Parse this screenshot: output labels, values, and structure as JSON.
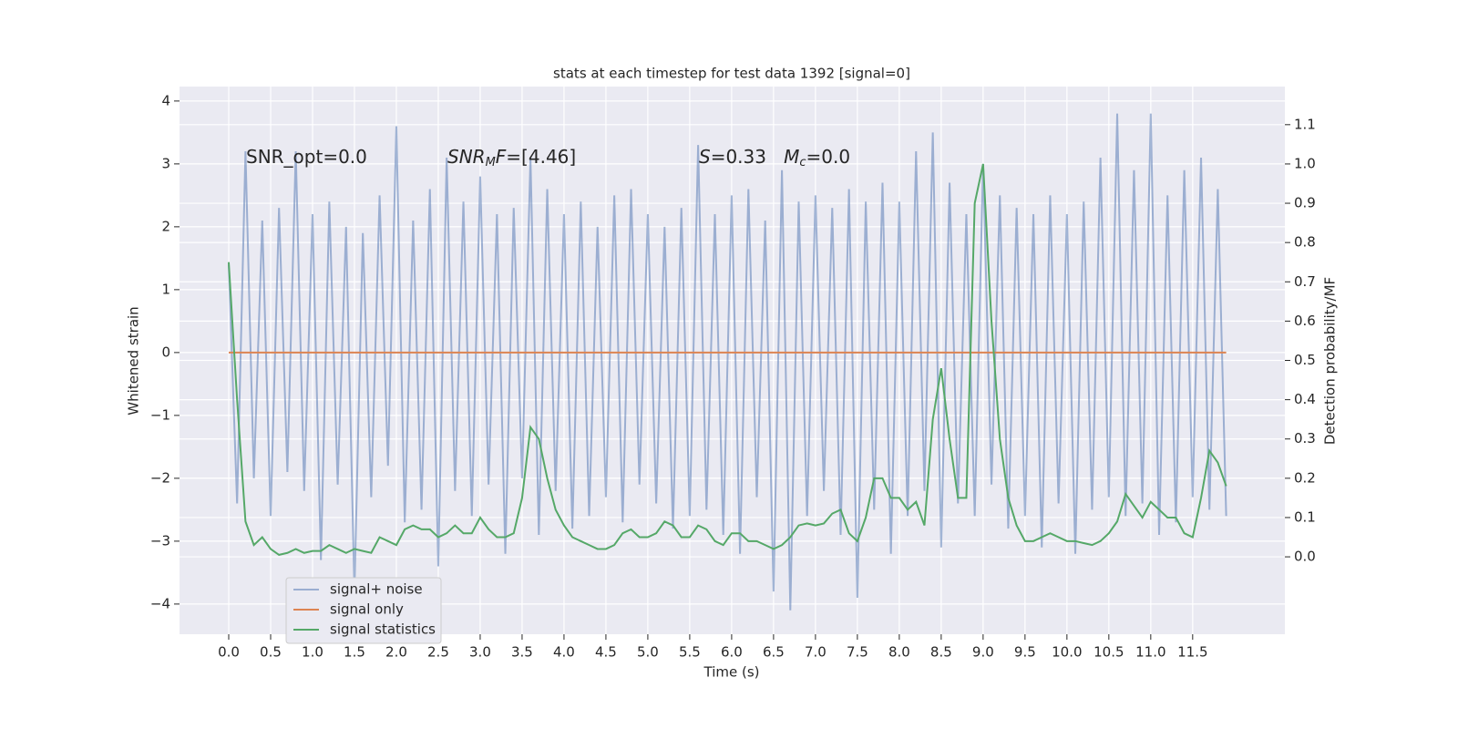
{
  "chart_data": {
    "type": "line",
    "title": "stats at each timestep for test data 1392 [signal=0]",
    "x_label": "Time (s)",
    "y_label": "Whitened strain",
    "y2_label": "Detection probability/MF",
    "x": [
      0.0,
      0.1,
      0.2,
      0.3,
      0.4,
      0.5,
      0.6,
      0.7,
      0.8,
      0.9,
      1.0,
      1.1,
      1.2,
      1.3,
      1.4,
      1.5,
      1.6,
      1.7,
      1.8,
      1.9,
      2.0,
      2.1,
      2.2,
      2.3,
      2.4,
      2.5,
      2.6,
      2.7,
      2.8,
      2.9,
      3.0,
      3.1,
      3.2,
      3.3,
      3.4,
      3.5,
      3.6,
      3.7,
      3.8,
      3.9,
      4.0,
      4.1,
      4.2,
      4.3,
      4.4,
      4.5,
      4.6,
      4.7,
      4.8,
      4.9,
      5.0,
      5.1,
      5.2,
      5.3,
      5.4,
      5.5,
      5.6,
      5.7,
      5.8,
      5.9,
      6.0,
      6.1,
      6.2,
      6.3,
      6.4,
      6.5,
      6.6,
      6.7,
      6.8,
      6.9,
      7.0,
      7.1,
      7.2,
      7.3,
      7.4,
      7.5,
      7.6,
      7.7,
      7.8,
      7.9,
      8.0,
      8.1,
      8.2,
      8.3,
      8.4,
      8.5,
      8.6,
      8.7,
      8.8,
      8.9,
      9.0,
      9.1,
      9.2,
      9.3,
      9.4,
      9.5,
      9.6,
      9.7,
      9.8,
      9.9,
      10.0,
      10.1,
      10.2,
      10.3,
      10.4,
      10.5,
      10.6,
      10.7,
      10.8,
      10.9,
      11.0,
      11.1,
      11.2,
      11.3,
      11.4,
      11.5,
      11.6,
      11.7,
      11.8,
      11.9
    ],
    "series": [
      {
        "name": "signal+ noise",
        "color": "#4c72b0",
        "alpha": 0.5,
        "values": [
          1.4,
          -2.4,
          3.2,
          -2.0,
          2.1,
          -2.6,
          2.3,
          -1.9,
          3.2,
          -2.2,
          2.2,
          -3.3,
          2.4,
          -2.1,
          2.0,
          -3.8,
          1.9,
          -2.3,
          2.5,
          -1.8,
          3.6,
          -2.7,
          2.1,
          -2.5,
          2.6,
          -3.4,
          3.1,
          -2.2,
          2.4,
          -2.6,
          2.8,
          -2.1,
          2.2,
          -3.2,
          2.3,
          -2.0,
          3.1,
          -2.9,
          2.6,
          -2.2,
          2.2,
          -2.8,
          2.4,
          -2.6,
          2.0,
          -2.3,
          2.5,
          -2.7,
          2.6,
          -2.1,
          2.2,
          -2.4,
          2.0,
          -2.8,
          2.3,
          -2.6,
          3.3,
          -2.5,
          2.2,
          -2.9,
          2.5,
          -3.2,
          2.6,
          -2.3,
          2.1,
          -3.8,
          2.9,
          -4.1,
          2.4,
          -2.6,
          2.5,
          -2.2,
          2.3,
          -2.9,
          2.6,
          -3.9,
          2.4,
          -2.5,
          2.7,
          -3.2,
          2.4,
          -2.6,
          3.2,
          -2.2,
          3.5,
          -3.1,
          2.7,
          -2.4,
          2.2,
          -2.6,
          3.0,
          -2.1,
          2.5,
          -2.8,
          2.3,
          -2.6,
          2.2,
          -3.1,
          2.5,
          -2.4,
          2.2,
          -3.2,
          2.4,
          -2.5,
          3.1,
          -2.3,
          3.8,
          -2.6,
          2.9,
          -2.4,
          3.8,
          -2.9,
          2.5,
          -2.7,
          2.9,
          -2.3,
          3.1,
          -2.5,
          2.6,
          -2.6
        ]
      },
      {
        "name": "signal only",
        "color": "#dd8452",
        "alpha": 1,
        "values": [
          0,
          0,
          0,
          0,
          0,
          0,
          0,
          0,
          0,
          0,
          0,
          0,
          0,
          0,
          0,
          0,
          0,
          0,
          0,
          0,
          0,
          0,
          0,
          0,
          0,
          0,
          0,
          0,
          0,
          0,
          0,
          0,
          0,
          0,
          0,
          0,
          0,
          0,
          0,
          0,
          0,
          0,
          0,
          0,
          0,
          0,
          0,
          0,
          0,
          0,
          0,
          0,
          0,
          0,
          0,
          0,
          0,
          0,
          0,
          0,
          0,
          0,
          0,
          0,
          0,
          0,
          0,
          0,
          0,
          0,
          0,
          0,
          0,
          0,
          0,
          0,
          0,
          0,
          0,
          0,
          0,
          0,
          0,
          0,
          0,
          0,
          0,
          0,
          0,
          0,
          0,
          0,
          0,
          0,
          0,
          0,
          0,
          0,
          0,
          0,
          0,
          0,
          0,
          0,
          0,
          0,
          0,
          0,
          0,
          0,
          0,
          0,
          0,
          0,
          0,
          0,
          0,
          0,
          0,
          0
        ]
      },
      {
        "name": "signal statistics",
        "color": "#55a868",
        "alpha": 1,
        "axis": "y2",
        "values": [
          0.75,
          0.4,
          0.09,
          0.03,
          0.05,
          0.02,
          0.005,
          0.01,
          0.02,
          0.01,
          0.015,
          0.015,
          0.03,
          0.02,
          0.01,
          0.02,
          0.015,
          0.01,
          0.05,
          0.04,
          0.03,
          0.07,
          0.08,
          0.07,
          0.07,
          0.05,
          0.06,
          0.08,
          0.06,
          0.06,
          0.1,
          0.07,
          0.05,
          0.05,
          0.06,
          0.15,
          0.33,
          0.3,
          0.2,
          0.12,
          0.08,
          0.05,
          0.04,
          0.03,
          0.02,
          0.02,
          0.03,
          0.06,
          0.07,
          0.05,
          0.05,
          0.06,
          0.09,
          0.08,
          0.05,
          0.05,
          0.08,
          0.07,
          0.04,
          0.03,
          0.06,
          0.06,
          0.04,
          0.04,
          0.03,
          0.02,
          0.03,
          0.05,
          0.08,
          0.085,
          0.08,
          0.085,
          0.11,
          0.12,
          0.06,
          0.04,
          0.1,
          0.2,
          0.2,
          0.15,
          0.15,
          0.12,
          0.14,
          0.08,
          0.35,
          0.48,
          0.3,
          0.15,
          0.15,
          0.9,
          1.0,
          0.6,
          0.3,
          0.15,
          0.08,
          0.04,
          0.04,
          0.05,
          0.06,
          0.05,
          0.04,
          0.04,
          0.035,
          0.03,
          0.04,
          0.06,
          0.09,
          0.16,
          0.13,
          0.1,
          0.14,
          0.12,
          0.1,
          0.1,
          0.06,
          0.05,
          0.15,
          0.27,
          0.24,
          0.18
        ]
      }
    ],
    "xlim": [
      -0.587,
      12.6
    ],
    "ylim": [
      -4.48,
      4.23
    ],
    "y2lim": [
      -0.197,
      1.197
    ],
    "xticks": [
      {
        "value": 0,
        "label": "0.0"
      },
      0.5,
      {
        "value": 1,
        "label": "1.0"
      },
      1.5,
      {
        "value": 2,
        "label": "2.0"
      },
      2.5,
      {
        "value": 3,
        "label": "3.0"
      },
      3.5,
      {
        "value": 4,
        "label": "4.0"
      },
      4.5,
      {
        "value": 5,
        "label": "5.0"
      },
      5.5,
      {
        "value": 6,
        "label": "6.0"
      },
      6.5,
      {
        "value": 7,
        "label": "7.0"
      },
      7.5,
      {
        "value": 8,
        "label": "8.0"
      },
      8.5,
      {
        "value": 9,
        "label": "9.0"
      },
      9.5,
      {
        "value": 10,
        "label": "10.0"
      },
      10.5,
      {
        "value": 11,
        "label": "11.0"
      },
      11.5
    ],
    "yticks": [
      {
        "value": -4,
        "label": "−4"
      },
      {
        "value": -3,
        "label": "−3"
      },
      {
        "value": -2,
        "label": "−2"
      },
      {
        "value": -1,
        "label": "−1"
      },
      0,
      1,
      2,
      3,
      4
    ],
    "y2ticks": [
      {
        "value": 0,
        "label": "0.0"
      },
      0.1,
      0.2,
      0.3,
      0.4,
      0.5,
      0.6,
      0.7,
      0.8,
      0.9,
      {
        "value": 1,
        "label": "1.0"
      },
      1.1
    ],
    "grid": true,
    "legend": "lower left",
    "annotations": [
      {
        "parts": [
          {
            "text": "SNR_opt=0.0",
            "italic": false,
            "sub": false
          }
        ]
      },
      {
        "parts": [
          {
            "text": "SNR",
            "italic": true,
            "sub": false
          },
          {
            "text": "M",
            "italic": true,
            "sub": true
          },
          {
            "text": "F",
            "italic": true,
            "sub": false
          },
          {
            "text": "=[4.46]",
            "italic": false,
            "sub": false
          }
        ]
      },
      {
        "parts": [
          {
            "text": "S",
            "italic": true,
            "sub": false
          },
          {
            "text": "=0.33   ",
            "italic": false,
            "sub": false
          },
          {
            "text": "M",
            "italic": true,
            "sub": false
          },
          {
            "text": "c",
            "italic": true,
            "sub": true
          },
          {
            "text": "=0.0",
            "italic": false,
            "sub": false
          }
        ]
      }
    ]
  }
}
